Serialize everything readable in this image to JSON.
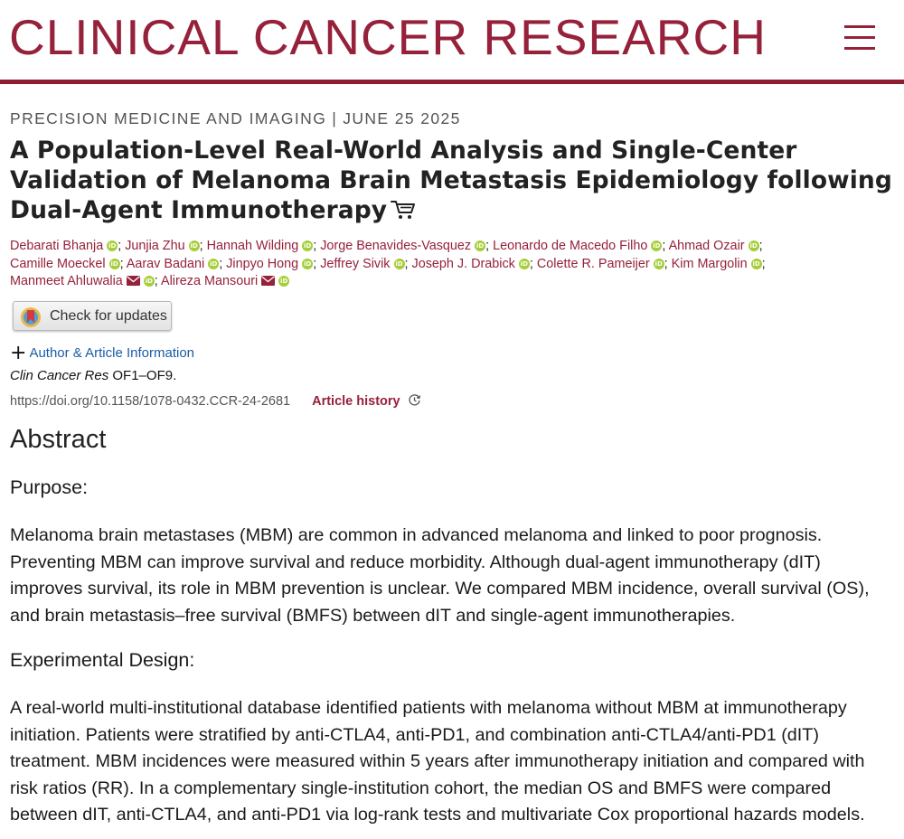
{
  "header": {
    "journal_title": "CLINICAL CANCER RESEARCH",
    "menu_icon": "hamburger-menu-icon",
    "accent_color": "#96213a"
  },
  "article": {
    "category": "PRECISION MEDICINE AND IMAGING",
    "separator": "|",
    "date": "JUNE 25 2025",
    "title": "A Population-Level Real-World Analysis and Single-Center Validation of Melanoma Brain Metastasis Epidemiology following Dual-Agent Immunotherapy",
    "cart_icon": "shopping-cart-icon"
  },
  "authors": [
    {
      "name": "Debarati Bhanja",
      "orcid": true,
      "email": false
    },
    {
      "name": "Junjia Zhu",
      "orcid": true,
      "email": false
    },
    {
      "name": "Hannah Wilding",
      "orcid": true,
      "email": false
    },
    {
      "name": "Jorge Benavides-Vasquez",
      "orcid": true,
      "email": false
    },
    {
      "name": "Leonardo de Macedo Filho",
      "orcid": true,
      "email": false
    },
    {
      "name": "Ahmad Ozair",
      "orcid": true,
      "email": false
    },
    {
      "name": "Camille Moeckel",
      "orcid": true,
      "email": false
    },
    {
      "name": "Aarav Badani",
      "orcid": true,
      "email": false
    },
    {
      "name": "Jinpyo Hong",
      "orcid": true,
      "email": false
    },
    {
      "name": "Jeffrey Sivik",
      "orcid": true,
      "email": false
    },
    {
      "name": "Joseph J. Drabick",
      "orcid": true,
      "email": false
    },
    {
      "name": "Colette R. Pameijer",
      "orcid": true,
      "email": false
    },
    {
      "name": "Kim Margolin",
      "orcid": true,
      "email": false
    },
    {
      "name": "Manmeet Ahluwalia",
      "orcid": true,
      "email": true
    },
    {
      "name": "Alireza Mansouri",
      "orcid": true,
      "email": true
    }
  ],
  "orcid_label": "iD",
  "author_separator": ";",
  "updates": {
    "label": "Check for updates",
    "icon": "crossmark-icon"
  },
  "info": {
    "plus_icon": "+",
    "link_label": "Author & Article Information"
  },
  "citation": {
    "journal": "Clin Cancer Res",
    "pages": " OF1–OF9."
  },
  "doi": {
    "url": "https://doi.org/10.1158/1078-0432.CCR-24-2681",
    "history_label": "Article history",
    "history_icon": "history-clock-icon"
  },
  "abstract": {
    "heading": "Abstract",
    "sections": [
      {
        "heading": "Purpose:",
        "lines": [
          "Melanoma brain metastases (MBM) are common in advanced melanoma and linked to poor prognosis.",
          "Preventing MBM can improve survival and reduce morbidity. Although dual-agent immunotherapy (dIT)",
          "improves survival, its role in MBM prevention is unclear. We compared MBM incidence, overall survival (OS),",
          "and brain metastasis–free survival (BMFS) between dIT and single-agent immunotherapies."
        ]
      },
      {
        "heading": "Experimental Design:",
        "lines": [
          "A real-world multi-institutional database identified patients with melanoma without MBM at immunotherapy",
          "initiation. Patients were stratified by anti-CTLA4, anti-PD1, and combination anti-CTLA4/anti-PD1 (dIT)",
          "treatment. MBM incidences were measured within 5 years after immunotherapy initiation and compared with",
          "risk ratios (RR). In a complementary single-institution cohort, the median OS and BMFS were compared",
          "between dIT, anti-CTLA4, and anti-PD1 via log-rank tests and multivariate Cox proportional hazards models."
        ]
      }
    ]
  }
}
